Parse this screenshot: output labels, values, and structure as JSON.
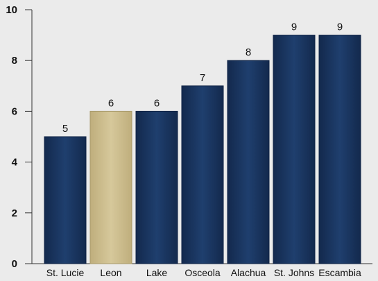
{
  "chart_data": {
    "type": "bar",
    "categories": [
      "St. Lucie",
      "Leon",
      "Lake",
      "Osceola",
      "Alachua",
      "St. Johns",
      "Escambia"
    ],
    "values": [
      5,
      6,
      6,
      7,
      8,
      9,
      9
    ],
    "data_labels": [
      "5",
      "6",
      "6",
      "7",
      "8",
      "9",
      "9"
    ],
    "highlight_index": 1,
    "yticks": [
      0,
      2,
      4,
      6,
      8,
      10
    ],
    "ylim": [
      0,
      10
    ],
    "grid": false,
    "legend": "none",
    "colors": {
      "bar": "#1b3864",
      "bar_edge": "#0f2345",
      "highlight": "#c9b988",
      "highlight_edge": "#a89a6a",
      "background": "#ebebeb",
      "axis": "#333333"
    }
  }
}
